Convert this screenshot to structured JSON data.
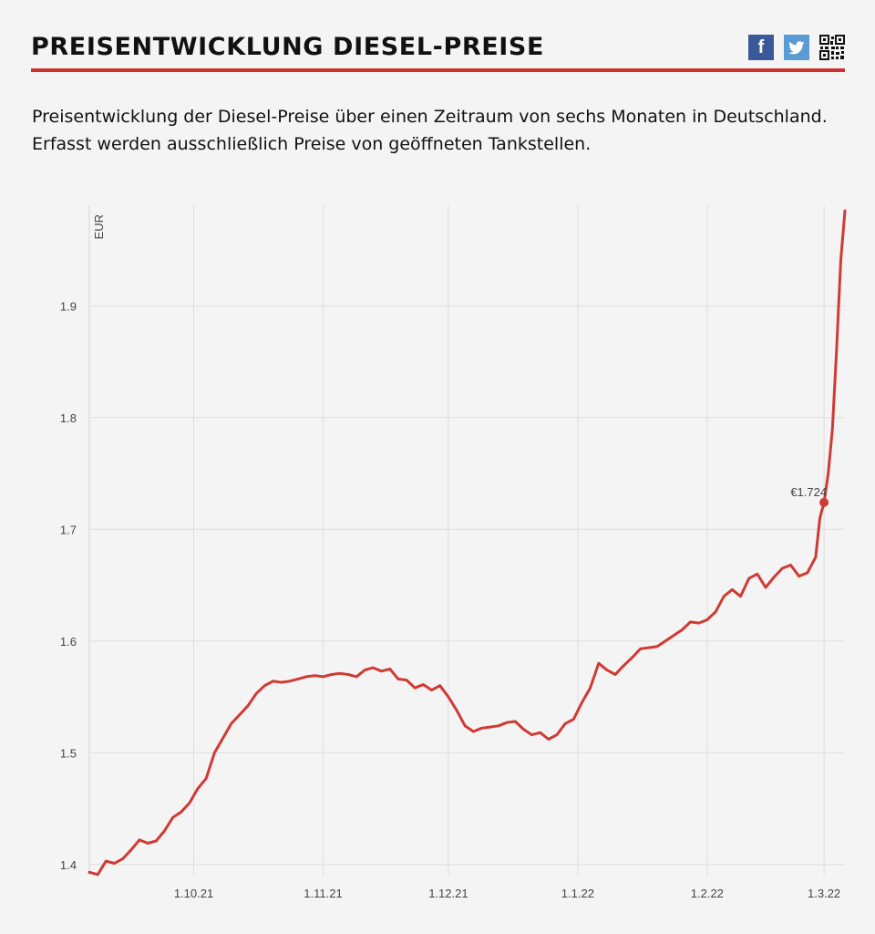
{
  "header": {
    "title": "PREISENTWICKLUNG DIESEL-PREISE",
    "share": [
      {
        "icon": "facebook-icon",
        "glyph": "f"
      },
      {
        "icon": "twitter-icon"
      },
      {
        "icon": "qr-code-icon"
      }
    ]
  },
  "intro": {
    "line1": "Preisentwicklung der Diesel-Preise über einen Zeitraum von sechs Monaten in Deutschland.",
    "line2": "Erfasst werden ausschließlich Preise von geöffneten Tankstellen."
  },
  "colors": {
    "accent": "#c8322d",
    "line": "#d03a34",
    "grid": "#dedede",
    "background": "#f4f4f4"
  },
  "chart_data": {
    "type": "line",
    "title": "",
    "xlabel": "",
    "ylabel": "EUR",
    "x_domain": [
      "2021-09-06",
      "2022-03-06"
    ],
    "ylim": [
      1.39,
      1.99
    ],
    "yticks": [
      1.4,
      1.5,
      1.6,
      1.7,
      1.8,
      1.9
    ],
    "xticks": [
      {
        "date": "2021-10-01",
        "label": "1.10.21"
      },
      {
        "date": "2021-11-01",
        "label": "1.11.21"
      },
      {
        "date": "2021-12-01",
        "label": "1.12.21"
      },
      {
        "date": "2022-01-01",
        "label": "1.1.22"
      },
      {
        "date": "2022-02-01",
        "label": "1.2.22"
      },
      {
        "date": "2022-03-01",
        "label": "1.3.22"
      }
    ],
    "grid": true,
    "annotation": {
      "date": "2022-03-01",
      "value": 1.724,
      "label": "€1.724"
    },
    "series": [
      {
        "name": "",
        "points": [
          [
            "2021-09-06",
            1.393
          ],
          [
            "2021-09-08",
            1.391
          ],
          [
            "2021-09-10",
            1.403
          ],
          [
            "2021-09-12",
            1.401
          ],
          [
            "2021-09-14",
            1.405
          ],
          [
            "2021-09-16",
            1.413
          ],
          [
            "2021-09-18",
            1.422
          ],
          [
            "2021-09-20",
            1.419
          ],
          [
            "2021-09-22",
            1.421
          ],
          [
            "2021-09-24",
            1.43
          ],
          [
            "2021-09-26",
            1.442
          ],
          [
            "2021-09-28",
            1.447
          ],
          [
            "2021-09-30",
            1.455
          ],
          [
            "2021-10-02",
            1.468
          ],
          [
            "2021-10-04",
            1.477
          ],
          [
            "2021-10-06",
            1.5
          ],
          [
            "2021-10-08",
            1.513
          ],
          [
            "2021-10-10",
            1.526
          ],
          [
            "2021-10-12",
            1.534
          ],
          [
            "2021-10-14",
            1.542
          ],
          [
            "2021-10-16",
            1.553
          ],
          [
            "2021-10-18",
            1.56
          ],
          [
            "2021-10-20",
            1.564
          ],
          [
            "2021-10-22",
            1.563
          ],
          [
            "2021-10-24",
            1.564
          ],
          [
            "2021-10-26",
            1.566
          ],
          [
            "2021-10-28",
            1.568
          ],
          [
            "2021-10-30",
            1.569
          ],
          [
            "2021-11-01",
            1.568
          ],
          [
            "2021-11-03",
            1.57
          ],
          [
            "2021-11-05",
            1.571
          ],
          [
            "2021-11-07",
            1.57
          ],
          [
            "2021-11-09",
            1.568
          ],
          [
            "2021-11-11",
            1.574
          ],
          [
            "2021-11-13",
            1.576
          ],
          [
            "2021-11-15",
            1.573
          ],
          [
            "2021-11-17",
            1.575
          ],
          [
            "2021-11-19",
            1.566
          ],
          [
            "2021-11-21",
            1.565
          ],
          [
            "2021-11-23",
            1.558
          ],
          [
            "2021-11-25",
            1.561
          ],
          [
            "2021-11-27",
            1.556
          ],
          [
            "2021-11-29",
            1.56
          ],
          [
            "2021-12-01",
            1.55
          ],
          [
            "2021-12-03",
            1.538
          ],
          [
            "2021-12-05",
            1.524
          ],
          [
            "2021-12-07",
            1.519
          ],
          [
            "2021-12-09",
            1.522
          ],
          [
            "2021-12-11",
            1.523
          ],
          [
            "2021-12-13",
            1.524
          ],
          [
            "2021-12-15",
            1.527
          ],
          [
            "2021-12-17",
            1.528
          ],
          [
            "2021-12-19",
            1.521
          ],
          [
            "2021-12-21",
            1.516
          ],
          [
            "2021-12-23",
            1.518
          ],
          [
            "2021-12-25",
            1.512
          ],
          [
            "2021-12-27",
            1.516
          ],
          [
            "2021-12-29",
            1.526
          ],
          [
            "2021-12-31",
            1.53
          ],
          [
            "2022-01-02",
            1.545
          ],
          [
            "2022-01-04",
            1.558
          ],
          [
            "2022-01-06",
            1.58
          ],
          [
            "2022-01-08",
            1.574
          ],
          [
            "2022-01-10",
            1.57
          ],
          [
            "2022-01-12",
            1.578
          ],
          [
            "2022-01-14",
            1.585
          ],
          [
            "2022-01-16",
            1.593
          ],
          [
            "2022-01-18",
            1.594
          ],
          [
            "2022-01-20",
            1.595
          ],
          [
            "2022-01-22",
            1.6
          ],
          [
            "2022-01-24",
            1.605
          ],
          [
            "2022-01-26",
            1.61
          ],
          [
            "2022-01-28",
            1.617
          ],
          [
            "2022-01-30",
            1.616
          ],
          [
            "2022-02-01",
            1.619
          ],
          [
            "2022-02-03",
            1.626
          ],
          [
            "2022-02-05",
            1.64
          ],
          [
            "2022-02-07",
            1.646
          ],
          [
            "2022-02-09",
            1.64
          ],
          [
            "2022-02-11",
            1.656
          ],
          [
            "2022-02-13",
            1.66
          ],
          [
            "2022-02-15",
            1.648
          ],
          [
            "2022-02-17",
            1.657
          ],
          [
            "2022-02-19",
            1.665
          ],
          [
            "2022-02-21",
            1.668
          ],
          [
            "2022-02-23",
            1.658
          ],
          [
            "2022-02-25",
            1.661
          ],
          [
            "2022-02-27",
            1.675
          ],
          [
            "2022-02-28",
            1.71
          ],
          [
            "2022-03-01",
            1.724
          ],
          [
            "2022-03-02",
            1.75
          ],
          [
            "2022-03-03",
            1.79
          ],
          [
            "2022-03-04",
            1.86
          ],
          [
            "2022-03-05",
            1.94
          ],
          [
            "2022-03-06",
            1.985
          ]
        ]
      }
    ]
  }
}
